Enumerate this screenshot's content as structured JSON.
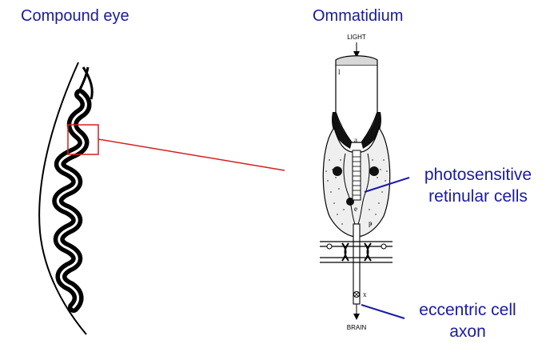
{
  "titles": {
    "compound_eye": "Compound eye",
    "ommatidium": "Ommatidium"
  },
  "ommatidium_labels": {
    "light": "LIGHT",
    "brain": "BRAIN",
    "l": "l",
    "a": "a",
    "e": "e",
    "p": "p",
    "x": "x"
  },
  "callouts": {
    "photosensitive_line1": "photosensitive",
    "photosensitive_line2": "retinular cells",
    "eccentric_line1": "eccentric cell",
    "eccentric_line2": "axon"
  },
  "colors": {
    "title_blue": "#1a1a9a",
    "callout_blue": "#1a1aa8",
    "zoom_red": "#d42020"
  }
}
